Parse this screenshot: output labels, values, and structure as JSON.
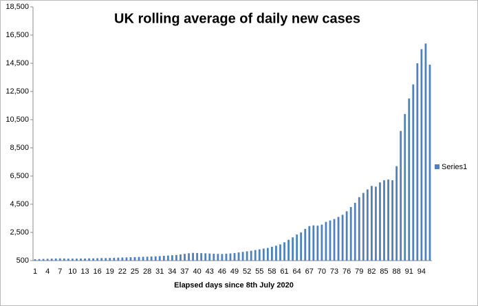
{
  "chart_data": {
    "type": "bar",
    "title": "UK rolling average of  daily new cases",
    "x_label": "Elapsed days since 8th July 2020",
    "categories": [
      1,
      null,
      null,
      4,
      null,
      null,
      7,
      null,
      null,
      10,
      null,
      null,
      13,
      null,
      null,
      16,
      null,
      null,
      19,
      null,
      null,
      22,
      null,
      null,
      25,
      null,
      null,
      28,
      null,
      null,
      31,
      null,
      null,
      34,
      null,
      null,
      37,
      null,
      null,
      40,
      null,
      null,
      43,
      null,
      null,
      46,
      null,
      null,
      49,
      null,
      null,
      52,
      null,
      null,
      55,
      null,
      null,
      58,
      null,
      null,
      61,
      null,
      null,
      64,
      null,
      null,
      67,
      null,
      null,
      70,
      null,
      null,
      73,
      null,
      null,
      76,
      null,
      null,
      79,
      null,
      null,
      82,
      null,
      null,
      85,
      null,
      null,
      88,
      null,
      null,
      91,
      null,
      null,
      94,
      null,
      null
    ],
    "series": [
      {
        "name": "Series1",
        "color": "#4f81bd",
        "values": [
          600,
          610,
          620,
          630,
          640,
          650,
          660,
          650,
          640,
          640,
          640,
          650,
          650,
          660,
          660,
          670,
          680,
          680,
          690,
          700,
          710,
          720,
          730,
          740,
          750,
          760,
          770,
          780,
          790,
          800,
          820,
          840,
          860,
          880,
          900,
          940,
          980,
          1020,
          1050,
          1040,
          1030,
          1020,
          1000,
          990,
          980,
          970,
          990,
          1010,
          1040,
          1080,
          1120,
          1160,
          1200,
          1250,
          1300,
          1350,
          1400,
          1480,
          1560,
          1650,
          1800,
          1980,
          2150,
          2350,
          2500,
          2750,
          2950,
          3000,
          2980,
          3050,
          3250,
          3350,
          3450,
          3600,
          3750,
          4000,
          4300,
          4600,
          5000,
          5300,
          5550,
          5800,
          5750,
          6050,
          6200,
          6250,
          6200,
          7200,
          9700,
          10900,
          12000,
          13000,
          14500,
          15500,
          15900,
          14400
        ]
      }
    ],
    "ylim": [
      500,
      18500
    ],
    "yticks": [
      500,
      {
        "value": 2500,
        "label": "2,500"
      },
      {
        "value": 4500,
        "label": "4,500"
      },
      {
        "value": 6500,
        "label": "6,500"
      },
      {
        "value": 8500,
        "label": "8,500"
      },
      {
        "value": 10500,
        "label": "10,500"
      },
      {
        "value": 12500,
        "label": "12,500"
      },
      {
        "value": 14500,
        "label": "14,500"
      },
      {
        "value": 16500,
        "label": "16,500"
      },
      {
        "value": 18500,
        "label": "18,500"
      }
    ],
    "legend": "right"
  }
}
